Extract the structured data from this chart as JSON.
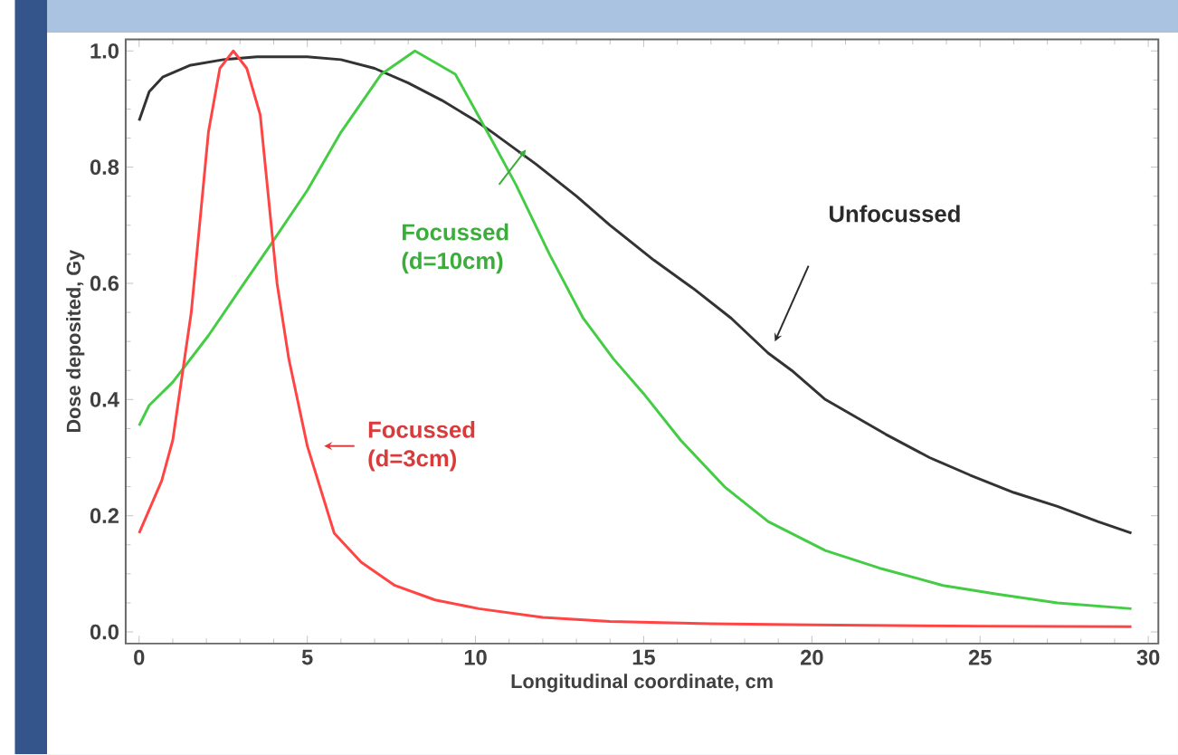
{
  "chart_data": {
    "type": "line",
    "xlabel": "Longitudinal coordinate, cm",
    "ylabel": "Dose deposited, Gy",
    "xlim": [
      -0.4,
      30.3
    ],
    "ylim": [
      -0.02,
      1.02
    ],
    "xticks": [
      0,
      5,
      10,
      15,
      20,
      25,
      30
    ],
    "yticks": [
      {
        "value": 0,
        "label": "0.0"
      },
      0.2,
      0.4,
      0.6,
      0.8,
      {
        "value": 1,
        "label": "1.0"
      }
    ],
    "series": [
      {
        "name": "Unfocussed",
        "color": "#333333",
        "x": [
          0,
          0.3,
          0.7,
          1.5,
          2.5,
          3.5,
          5,
          6,
          7,
          8,
          9,
          10,
          10.5,
          11.8,
          13,
          14,
          15.3,
          16.5,
          17.6,
          18.7,
          19.4,
          20.4,
          22.2,
          23.5,
          24.7,
          26,
          27.3,
          28.5,
          29.5
        ],
        "values": [
          0.88,
          0.93,
          0.955,
          0.975,
          0.985,
          0.99,
          0.99,
          0.985,
          0.97,
          0.945,
          0.915,
          0.88,
          0.86,
          0.805,
          0.75,
          0.7,
          0.64,
          0.59,
          0.54,
          0.48,
          0.45,
          0.4,
          0.34,
          0.3,
          0.27,
          0.24,
          0.216,
          0.19,
          0.17
        ]
      },
      {
        "name": "Focussed (d=10cm)",
        "color": "#44cc44",
        "x": [
          0,
          0.3,
          1,
          2.06,
          3,
          3.95,
          5,
          6,
          7.2,
          8.2,
          9.4,
          10.5,
          11.2,
          12.2,
          13.2,
          14.1,
          15,
          16.1,
          17.4,
          18.7,
          20.4,
          22,
          23.9,
          25.5,
          27.3,
          29.5
        ],
        "values": [
          0.355,
          0.39,
          0.43,
          0.51,
          0.59,
          0.67,
          0.76,
          0.86,
          0.96,
          1.0,
          0.96,
          0.845,
          0.77,
          0.65,
          0.54,
          0.47,
          0.41,
          0.33,
          0.25,
          0.19,
          0.14,
          0.11,
          0.08,
          0.065,
          0.05,
          0.04
        ]
      },
      {
        "name": "Focussed (d=3cm)",
        "color": "#ff4444",
        "x": [
          0,
          0.67,
          1,
          1.55,
          2.06,
          2.4,
          2.8,
          3.2,
          3.6,
          4.1,
          4.45,
          5,
          5.8,
          6.6,
          7.6,
          8.8,
          10.1,
          12,
          14,
          17,
          20,
          25,
          29.5
        ],
        "values": [
          0.17,
          0.26,
          0.33,
          0.55,
          0.86,
          0.97,
          1.0,
          0.97,
          0.89,
          0.6,
          0.47,
          0.32,
          0.17,
          0.12,
          0.08,
          0.055,
          0.04,
          0.025,
          0.018,
          0.014,
          0.012,
          0.01,
          0.009
        ]
      }
    ]
  }
}
